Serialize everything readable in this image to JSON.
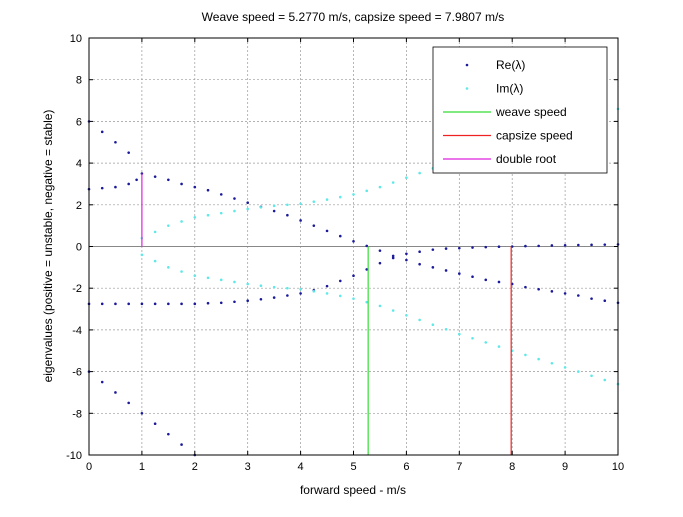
{
  "chart_data": {
    "type": "scatter",
    "title": "Weave speed = 5.2770 m/s, capsize speed = 7.9807 m/s",
    "xlabel": "forward speed - m/s",
    "ylabel": "eigenvalues (positive = unstable, negative = stable)",
    "xlim": [
      0,
      10
    ],
    "ylim": [
      -10,
      10
    ],
    "xticks": [
      0,
      1,
      2,
      3,
      4,
      5,
      6,
      7,
      8,
      9,
      10
    ],
    "yticks": [
      -10,
      -8,
      -6,
      -4,
      -2,
      0,
      2,
      4,
      6,
      8,
      10
    ],
    "grid": true,
    "legend_position": "top-right",
    "colors": {
      "re": "#1a1a9a",
      "im": "#5fe8e8",
      "weave": "#33dd33",
      "capsize": "#ee2222",
      "double_root": "#dd22dd",
      "zero_line": "#888888"
    },
    "series": [
      {
        "name": "Re(λ)",
        "style": "dots",
        "color": "#1a1a9a",
        "points": [
          [
            0,
            6.0
          ],
          [
            0.25,
            5.5
          ],
          [
            0.5,
            5.0
          ],
          [
            0.75,
            4.5
          ],
          [
            1,
            3.5
          ],
          [
            1.25,
            3.35
          ],
          [
            1.5,
            3.2
          ],
          [
            1.75,
            3.0
          ],
          [
            2,
            2.85
          ],
          [
            2.25,
            2.7
          ],
          [
            2.5,
            2.5
          ],
          [
            2.75,
            2.3
          ],
          [
            3,
            2.1
          ],
          [
            3.25,
            1.9
          ],
          [
            3.5,
            1.7
          ],
          [
            3.75,
            1.5
          ],
          [
            4,
            1.25
          ],
          [
            4.25,
            1.0
          ],
          [
            4.5,
            0.75
          ],
          [
            4.75,
            0.5
          ],
          [
            5,
            0.25
          ],
          [
            5.25,
            0.03
          ],
          [
            5.5,
            -0.2
          ],
          [
            5.75,
            -0.45
          ],
          [
            6,
            -0.65
          ],
          [
            6.25,
            -0.85
          ],
          [
            6.5,
            -1.0
          ],
          [
            6.75,
            -1.15
          ],
          [
            7,
            -1.3
          ],
          [
            7.25,
            -1.45
          ],
          [
            7.5,
            -1.6
          ],
          [
            7.75,
            -1.7
          ],
          [
            8,
            -1.8
          ],
          [
            8.25,
            -1.95
          ],
          [
            8.5,
            -2.05
          ],
          [
            8.75,
            -2.15
          ],
          [
            9,
            -2.25
          ],
          [
            9.25,
            -2.35
          ],
          [
            9.5,
            -2.5
          ],
          [
            9.75,
            -2.6
          ],
          [
            10,
            -2.7
          ],
          [
            0,
            2.75
          ],
          [
            0.25,
            2.8
          ],
          [
            0.5,
            2.85
          ],
          [
            0.75,
            3.0
          ],
          [
            0.9,
            3.2
          ],
          [
            0,
            -2.75
          ],
          [
            0.25,
            -2.75
          ],
          [
            0.5,
            -2.75
          ],
          [
            0.75,
            -2.75
          ],
          [
            1,
            -2.75
          ],
          [
            1.25,
            -2.75
          ],
          [
            1.5,
            -2.75
          ],
          [
            1.75,
            -2.75
          ],
          [
            2,
            -2.75
          ],
          [
            2.25,
            -2.72
          ],
          [
            2.5,
            -2.7
          ],
          [
            2.75,
            -2.65
          ],
          [
            3,
            -2.6
          ],
          [
            3.25,
            -2.53
          ],
          [
            3.5,
            -2.45
          ],
          [
            3.75,
            -2.35
          ],
          [
            4,
            -2.25
          ],
          [
            4.25,
            -2.1
          ],
          [
            4.5,
            -1.9
          ],
          [
            4.75,
            -1.65
          ],
          [
            5,
            -1.4
          ],
          [
            5.25,
            -1.1
          ],
          [
            5.5,
            -0.8
          ],
          [
            5.75,
            -0.55
          ],
          [
            6,
            -0.35
          ],
          [
            6.25,
            -0.25
          ],
          [
            6.5,
            -0.15
          ],
          [
            6.75,
            -0.1
          ],
          [
            7,
            -0.08
          ],
          [
            7.25,
            -0.05
          ],
          [
            7.5,
            -0.03
          ],
          [
            7.75,
            -0.01
          ],
          [
            8,
            0
          ],
          [
            8.25,
            0.02
          ],
          [
            8.5,
            0.03
          ],
          [
            8.75,
            0.05
          ],
          [
            9,
            0.06
          ],
          [
            9.25,
            0.07
          ],
          [
            9.5,
            0.08
          ],
          [
            9.75,
            0.09
          ],
          [
            10,
            0.1
          ],
          [
            0,
            -6
          ],
          [
            0.25,
            -6.5
          ],
          [
            0.5,
            -7
          ],
          [
            0.75,
            -7.5
          ],
          [
            1,
            -8
          ],
          [
            1.25,
            -8.5
          ],
          [
            1.5,
            -9
          ],
          [
            1.75,
            -9.5
          ],
          [
            2,
            -10
          ]
        ]
      },
      {
        "name": "Im(λ)",
        "style": "dots",
        "color": "#5fe8e8",
        "points": [
          [
            1,
            0.4
          ],
          [
            1.25,
            0.7
          ],
          [
            1.5,
            1.0
          ],
          [
            1.75,
            1.2
          ],
          [
            2,
            1.4
          ],
          [
            2.25,
            1.5
          ],
          [
            2.5,
            1.6
          ],
          [
            2.75,
            1.7
          ],
          [
            3,
            1.8
          ],
          [
            3.25,
            1.88
          ],
          [
            3.5,
            1.95
          ],
          [
            3.75,
            2.0
          ],
          [
            4,
            2.05
          ],
          [
            4.25,
            2.15
          ],
          [
            4.5,
            2.25
          ],
          [
            4.75,
            2.37
          ],
          [
            5,
            2.5
          ],
          [
            5.25,
            2.67
          ],
          [
            5.5,
            2.85
          ],
          [
            5.75,
            3.07
          ],
          [
            6,
            3.3
          ],
          [
            6.25,
            3.52
          ],
          [
            6.5,
            3.75
          ],
          [
            6.75,
            3.97
          ],
          [
            7,
            4.2
          ],
          [
            7.25,
            4.4
          ],
          [
            7.5,
            4.6
          ],
          [
            7.75,
            4.8
          ],
          [
            8,
            5.0
          ],
          [
            8.25,
            5.2
          ],
          [
            8.5,
            5.4
          ],
          [
            8.75,
            5.6
          ],
          [
            9,
            5.8
          ],
          [
            9.25,
            6.0
          ],
          [
            9.5,
            6.2
          ],
          [
            9.75,
            6.4
          ],
          [
            10,
            6.6
          ],
          [
            1,
            -0.4
          ],
          [
            1.25,
            -0.7
          ],
          [
            1.5,
            -1.0
          ],
          [
            1.75,
            -1.2
          ],
          [
            2,
            -1.4
          ],
          [
            2.25,
            -1.5
          ],
          [
            2.5,
            -1.6
          ],
          [
            2.75,
            -1.7
          ],
          [
            3,
            -1.8
          ],
          [
            3.25,
            -1.88
          ],
          [
            3.5,
            -1.95
          ],
          [
            3.75,
            -2.0
          ],
          [
            4,
            -2.05
          ],
          [
            4.25,
            -2.15
          ],
          [
            4.5,
            -2.25
          ],
          [
            4.75,
            -2.37
          ],
          [
            5,
            -2.5
          ],
          [
            5.25,
            -2.67
          ],
          [
            5.5,
            -2.85
          ],
          [
            5.75,
            -3.07
          ],
          [
            6,
            -3.3
          ],
          [
            6.25,
            -3.52
          ],
          [
            6.5,
            -3.75
          ],
          [
            6.75,
            -3.97
          ],
          [
            7,
            -4.2
          ],
          [
            7.25,
            -4.4
          ],
          [
            7.5,
            -4.6
          ],
          [
            7.75,
            -4.8
          ],
          [
            8,
            -5.0
          ],
          [
            8.25,
            -5.2
          ],
          [
            8.5,
            -5.4
          ],
          [
            8.75,
            -5.6
          ],
          [
            9,
            -5.8
          ],
          [
            9.25,
            -6.0
          ],
          [
            9.5,
            -6.2
          ],
          [
            9.75,
            -6.4
          ],
          [
            10,
            -6.6
          ]
        ]
      },
      {
        "name": "weave speed",
        "style": "line",
        "color": "#33dd33",
        "points": [
          [
            5.277,
            -10
          ],
          [
            5.277,
            0
          ]
        ]
      },
      {
        "name": "capsize speed",
        "style": "line",
        "color": "#ee2222",
        "points": [
          [
            7.9807,
            -10
          ],
          [
            7.9807,
            0
          ]
        ]
      },
      {
        "name": "double root",
        "style": "line",
        "color": "#dd22dd",
        "points": [
          [
            1,
            0
          ],
          [
            1,
            3.5
          ]
        ]
      }
    ]
  }
}
